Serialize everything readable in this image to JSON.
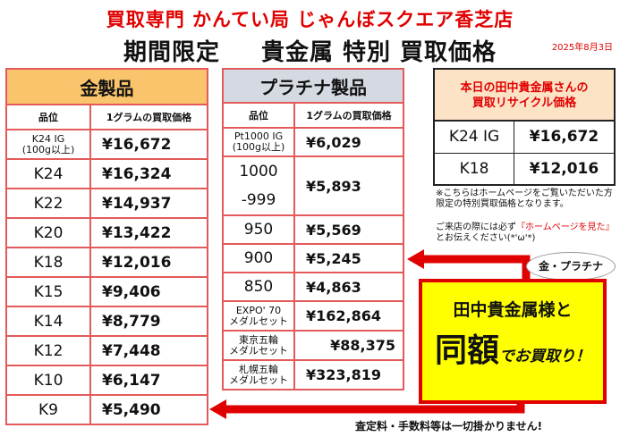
{
  "header": {
    "store_name": "買取専門 かんてい局 じゃんぼスクエア香芝店",
    "headline_left": "期間限定",
    "headline_right": "貴金属 特別 買取価格",
    "date": "2025年8月3日"
  },
  "gold_table": {
    "title": "金製品",
    "col_grade": "品位",
    "col_price": "1グラムの買取価格",
    "rows": [
      {
        "grade": "K24 IG\n(100g以上)",
        "price": "¥16,672"
      },
      {
        "grade": "K24",
        "price": "¥16,324"
      },
      {
        "grade": "K22",
        "price": "¥14,937"
      },
      {
        "grade": "K20",
        "price": "¥13,422"
      },
      {
        "grade": "K18",
        "price": "¥12,016"
      },
      {
        "grade": "K15",
        "price": "¥9,406"
      },
      {
        "grade": "K14",
        "price": "¥8,779"
      },
      {
        "grade": "K12",
        "price": "¥7,448"
      },
      {
        "grade": "K10",
        "price": "¥6,147"
      },
      {
        "grade": "K9",
        "price": "¥5,490"
      }
    ]
  },
  "platinum_table": {
    "title": "プラチナ製品",
    "col_grade": "品位",
    "col_price": "1グラムの買取価格",
    "r0_grade": "Pt1000 IG\n(100g以上)",
    "r0_price": "¥6,029",
    "r1_grade_a": "1000",
    "r1_grade_b": "-999",
    "r1_price": "¥5,893",
    "r2_grade": "950",
    "r2_price": "¥5,569",
    "r3_grade": "900",
    "r3_price": "¥5,245",
    "r4_grade": "850",
    "r4_price": "¥4,863",
    "r5_grade": "EXPO' 70\nメダルセット",
    "r5_price": "¥162,864",
    "r6_grade": "東京五輪\nメダルセット",
    "r6_price": "¥88,375",
    "r7_grade": "札幌五輪\nメダルセット",
    "r7_price": "¥323,819"
  },
  "today_box": {
    "title_line1": "本日の田中貴金属さんの",
    "title_line2": "買取リサイクル価格",
    "rows": [
      {
        "grade": "K24 IG",
        "price": "¥16,672"
      },
      {
        "grade": "K18",
        "price": "¥12,016"
      }
    ]
  },
  "notes": {
    "note1": "※こちらはホームページをご覧いただいた方限定の特別買取価格となります。",
    "note2_a": "ご来店の際には必ず",
    "note2_red": "『ホームページを見た』",
    "note2_b": "とお伝えください(*'ω'*)"
  },
  "promo": {
    "bubble": "金・プラチナ",
    "line1": "田中貴金属様と",
    "big": "同額",
    "tail": "でお買取り！"
  },
  "footer": "査定料・手数料等は一切掛かりません!",
  "colors": {
    "red": "#e00000",
    "gold_header": "#f9c46b",
    "platinum_header": "#d4d9e2",
    "promo_bg": "#ffff00"
  }
}
